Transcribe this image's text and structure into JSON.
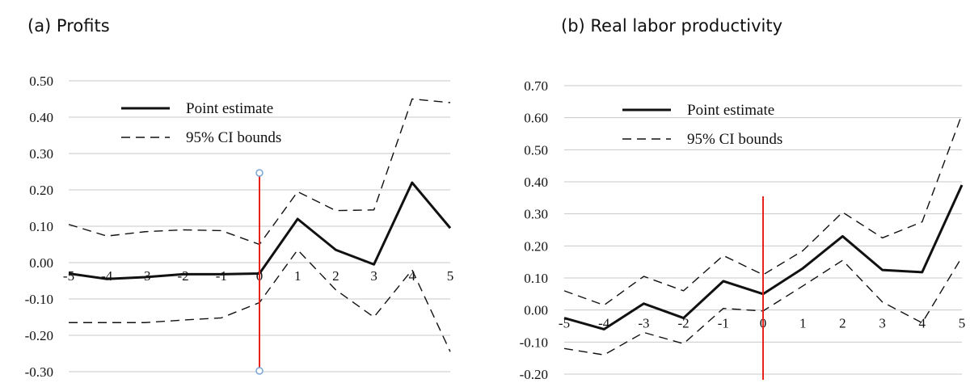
{
  "chart_data": [
    {
      "type": "line",
      "title": "(a) Profits",
      "x": [
        -5,
        -4,
        -3,
        -2,
        -1,
        0,
        1,
        2,
        3,
        4,
        5
      ],
      "ylim": [
        -0.3,
        0.5
      ],
      "yticks": [
        "0.50",
        "0.40",
        "0.30",
        "0.20",
        "0.10",
        "0.00",
        "-0.10",
        "-0.20",
        "-0.30"
      ],
      "xticks": [
        "-5",
        "-4",
        "-3",
        "-2",
        "-1",
        "0",
        "1",
        "2",
        "3",
        "4",
        "5"
      ],
      "grid": true,
      "legend": "top-left",
      "event_marker_x": 0,
      "series": [
        {
          "name": "Point estimate",
          "style": "solid",
          "values": [
            -0.03,
            -0.045,
            -0.04,
            -0.032,
            -0.032,
            -0.03,
            0.12,
            0.035,
            -0.005,
            0.22,
            0.095
          ]
        },
        {
          "name": "95% CI bounds",
          "style": "dashed",
          "values": [
            0.105,
            0.073,
            0.085,
            0.09,
            0.088,
            0.05,
            0.195,
            0.143,
            0.145,
            0.45,
            0.44
          ]
        },
        {
          "name": "",
          "style": "dashed",
          "values": [
            -0.165,
            -0.165,
            -0.165,
            -0.158,
            -0.152,
            -0.11,
            0.035,
            -0.075,
            -0.15,
            -0.02,
            -0.245
          ]
        }
      ]
    },
    {
      "type": "line",
      "title": "(b) Real labor productivity",
      "x": [
        -5,
        -4,
        -3,
        -2,
        -1,
        0,
        1,
        2,
        3,
        4,
        5
      ],
      "ylim": [
        -0.2,
        0.7
      ],
      "yticks": [
        "0.70",
        "0.60",
        "0.50",
        "0.40",
        "0.30",
        "0.20",
        "0.10",
        "0.00",
        "-0.10",
        "-0.20"
      ],
      "xticks": [
        "-5",
        "-4",
        "-3",
        "-2",
        "-1",
        "0",
        "1",
        "2",
        "3",
        "4",
        "5"
      ],
      "grid": true,
      "legend": "top-left",
      "event_marker_x": 0,
      "series": [
        {
          "name": "Point estimate",
          "style": "solid",
          "values": [
            -0.025,
            -0.06,
            0.02,
            -0.025,
            0.09,
            0.05,
            0.13,
            0.23,
            0.125,
            0.118,
            0.39
          ]
        },
        {
          "name": "95% CI bounds",
          "style": "dashed",
          "values": [
            0.06,
            0.015,
            0.105,
            0.06,
            0.17,
            0.11,
            0.185,
            0.305,
            0.225,
            0.275,
            0.61
          ]
        },
        {
          "name": "",
          "style": "dashed",
          "values": [
            -0.12,
            -0.14,
            -0.07,
            -0.105,
            0.005,
            -0.003,
            0.075,
            0.155,
            0.025,
            -0.04,
            0.165
          ]
        }
      ]
    }
  ],
  "colors": {
    "line": "#111111",
    "grid": "#c8c8c8",
    "marker": "#e8231c",
    "handle": "#7aa6d8"
  }
}
